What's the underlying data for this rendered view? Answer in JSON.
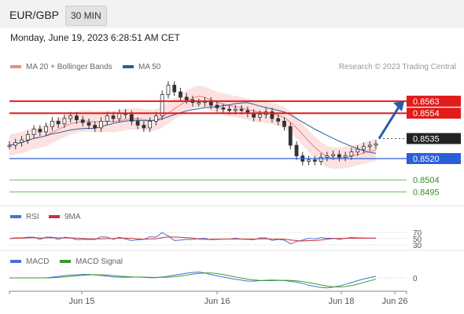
{
  "header": {
    "symbol": "EUR/GBP",
    "timeframe": "30 MIN"
  },
  "datetime": "Monday, June 19, 2023 6:28:51 AM CET",
  "credit": "Research © 2023 Trading Central",
  "legends": {
    "price": [
      {
        "label": "MA 20 + Bollinger Bands",
        "color": "#f08a8a"
      },
      {
        "label": "MA 50",
        "color": "#2e5c9a"
      }
    ],
    "rsi": [
      {
        "label": "RSI",
        "color": "#4a6fd6"
      },
      {
        "label": "9MA",
        "color": "#d03030"
      }
    ],
    "macd": [
      {
        "label": "MACD",
        "color": "#4a6fd6"
      },
      {
        "label": "MACD Signal",
        "color": "#3a9a2a"
      }
    ]
  },
  "chart_data": {
    "type": "line",
    "x_ticks": [
      "Jun 15",
      "Jun 16",
      "Jun 18",
      "Jun 26"
    ],
    "price": [
      0.853,
      0.8532,
      0.8534,
      0.8538,
      0.8542,
      0.854,
      0.8544,
      0.8548,
      0.8546,
      0.855,
      0.8552,
      0.8549,
      0.8547,
      0.8545,
      0.8543,
      0.8548,
      0.8552,
      0.855,
      0.8554,
      0.8553,
      0.8548,
      0.8545,
      0.8543,
      0.8548,
      0.8552,
      0.8568,
      0.8575,
      0.857,
      0.8566,
      0.8564,
      0.8562,
      0.8562,
      0.8563,
      0.856,
      0.8558,
      0.8557,
      0.8556,
      0.8557,
      0.8556,
      0.8554,
      0.8551,
      0.8553,
      0.8555,
      0.855,
      0.8548,
      0.8544,
      0.853,
      0.8522,
      0.8518,
      0.8519,
      0.8518,
      0.8521,
      0.8522,
      0.8523,
      0.8521,
      0.8522,
      0.8525,
      0.8527,
      0.8529,
      0.853,
      0.8531
    ],
    "levels": {
      "resistance": [
        0.8563,
        0.8554
      ],
      "current": 0.8535,
      "support": [
        0.852,
        0.8504,
        0.8495
      ]
    },
    "rsi_ticks": [
      "70",
      "50",
      "30"
    ],
    "macd_ticks": [
      "0"
    ]
  }
}
